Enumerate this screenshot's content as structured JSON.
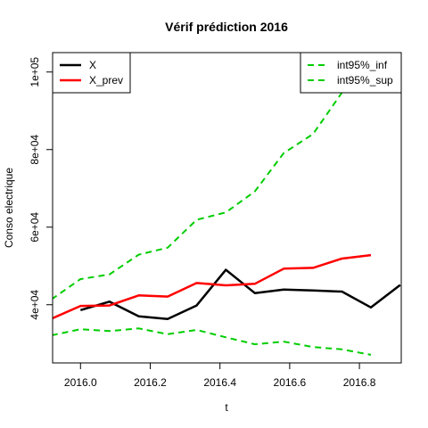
{
  "chart_data": {
    "type": "line",
    "title": "Vérif prédiction 2016",
    "xlabel": "t",
    "ylabel": "Conso electrique",
    "xlim": [
      2015.92,
      2016.92
    ],
    "ylim": [
      25000,
      105000
    ],
    "x_ticks": [
      2016.0,
      2016.2,
      2016.4,
      2016.6,
      2016.8
    ],
    "x_tick_labels": [
      "2016.0",
      "2016.2",
      "2016.4",
      "2016.6",
      "2016.8"
    ],
    "y_ticks": [
      40000,
      60000,
      80000,
      100000
    ],
    "y_tick_labels": [
      "4e+04",
      "6e+04",
      "8e+04",
      "1e+05"
    ],
    "grid": false,
    "series": [
      {
        "name": "X",
        "color": "#000000",
        "dash": "solid",
        "x": [
          2016.0,
          2016.083,
          2016.167,
          2016.25,
          2016.333,
          2016.417,
          2016.5,
          2016.583,
          2016.667,
          2016.75,
          2016.833,
          2016.917
        ],
        "y": [
          38600,
          40800,
          37000,
          36300,
          39800,
          49000,
          43000,
          43900,
          43700,
          43400,
          39300,
          45100
        ]
      },
      {
        "name": "X_prev",
        "color": "#ff0000",
        "dash": "solid",
        "x": [
          2015.917,
          2016.0,
          2016.083,
          2016.167,
          2016.25,
          2016.333,
          2016.417,
          2016.5,
          2016.583,
          2016.667,
          2016.75,
          2016.833
        ],
        "y": [
          36400,
          39700,
          39800,
          42400,
          42100,
          45600,
          45000,
          45400,
          49300,
          49500,
          51900,
          52800
        ]
      },
      {
        "name": "int95%_inf",
        "color": "#00cd00",
        "dash": "dashed",
        "x": [
          2015.917,
          2016.0,
          2016.083,
          2016.167,
          2016.25,
          2016.333,
          2016.417,
          2016.5,
          2016.583,
          2016.667,
          2016.75,
          2016.833
        ],
        "y": [
          32100,
          33700,
          33200,
          33900,
          32400,
          33500,
          31600,
          29800,
          30500,
          29100,
          28500,
          27100
        ]
      },
      {
        "name": "int95%_sup",
        "color": "#00cd00",
        "dash": "dashed",
        "x": [
          2015.917,
          2016.0,
          2016.083,
          2016.167,
          2016.25,
          2016.333,
          2016.417,
          2016.5,
          2016.583,
          2016.667,
          2016.75,
          2016.833
        ],
        "y": [
          41400,
          46600,
          47800,
          52900,
          54700,
          61900,
          63800,
          69200,
          79100,
          84000,
          94700,
          103800
        ]
      }
    ],
    "legends": [
      {
        "placement": "top-left",
        "entries": [
          "X",
          "X_prev"
        ]
      },
      {
        "placement": "top-right",
        "entries": [
          "int95%_inf",
          "int95%_sup"
        ]
      }
    ]
  }
}
